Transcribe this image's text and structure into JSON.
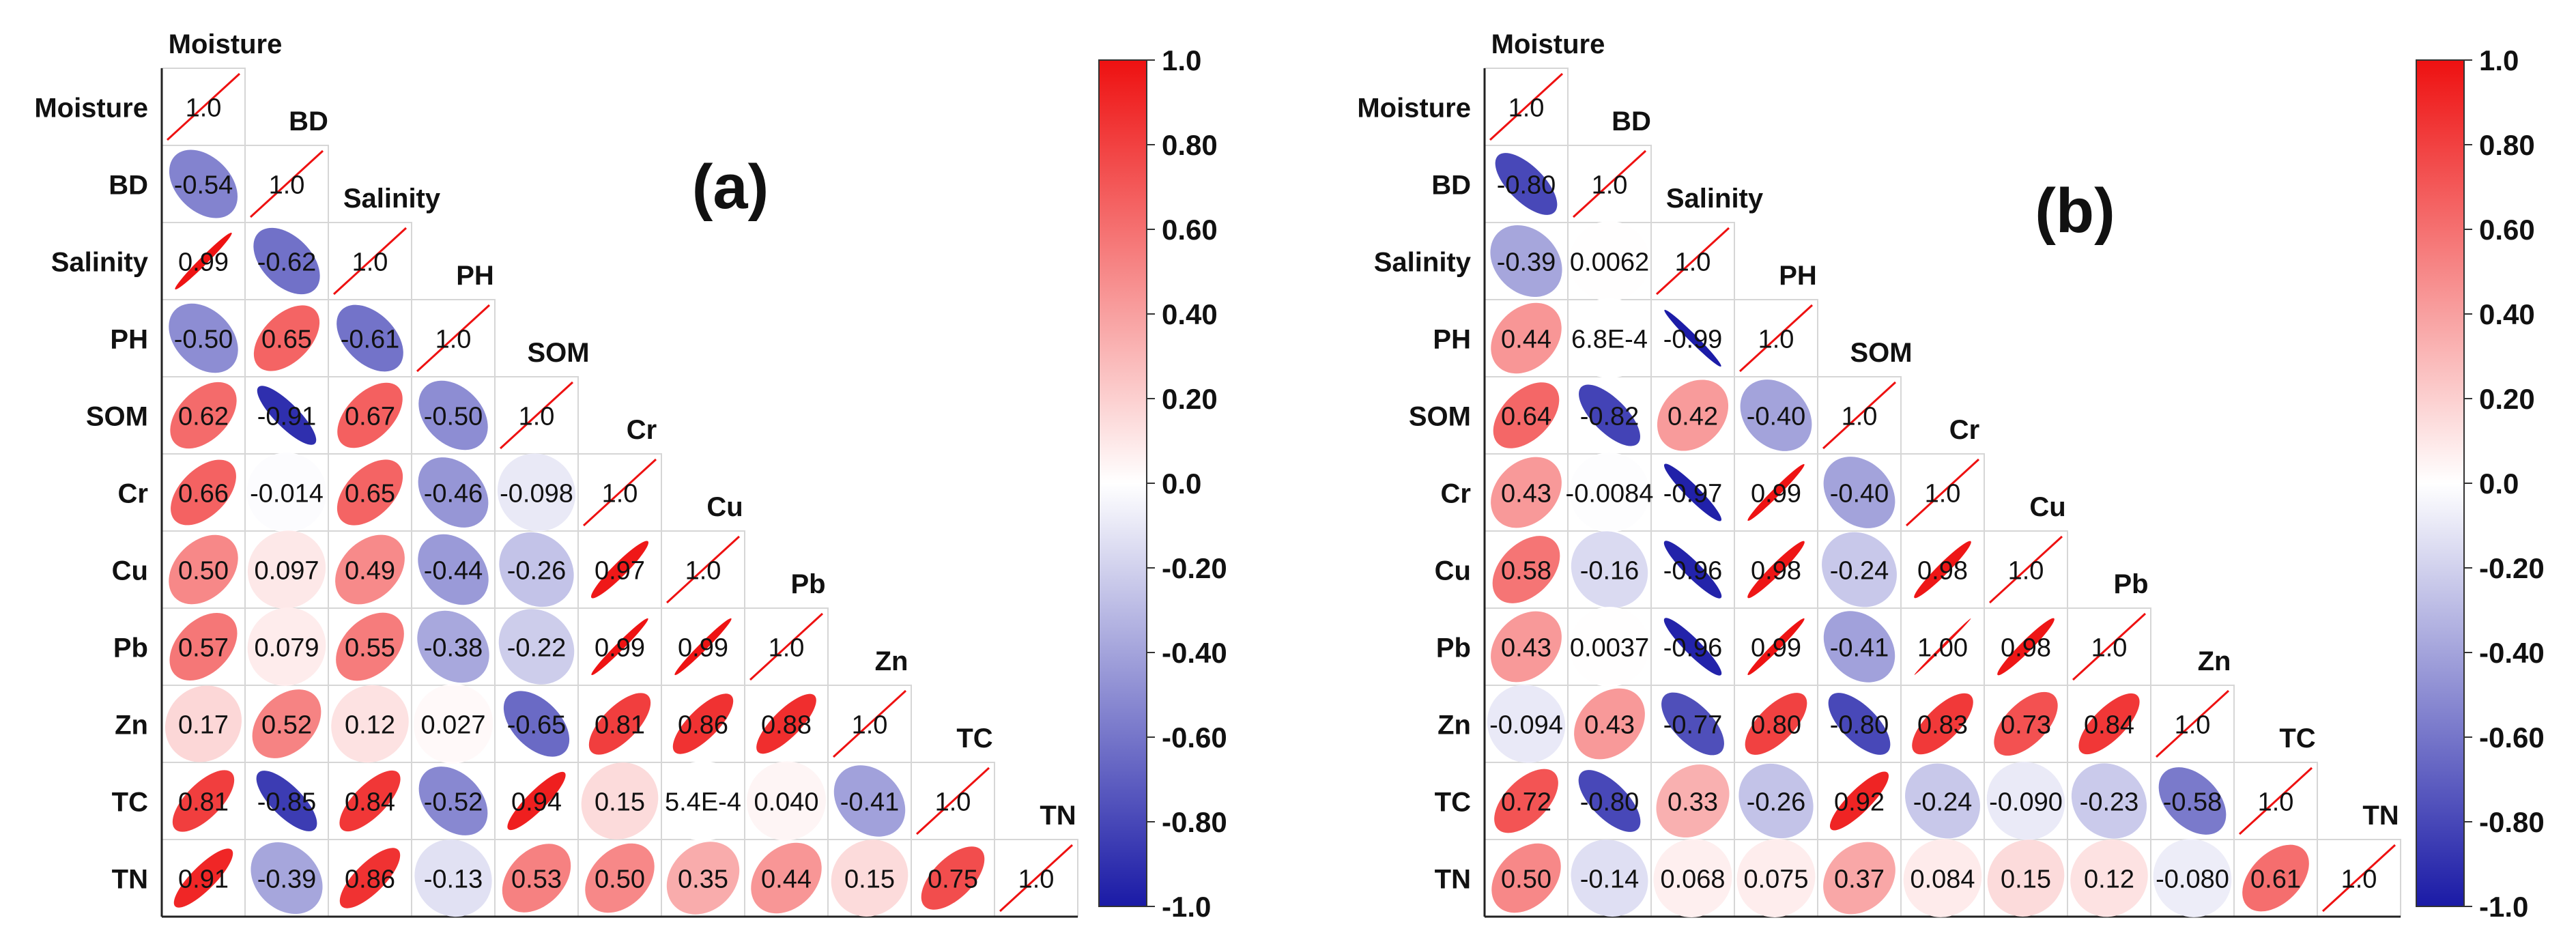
{
  "chart_data": [
    {
      "type": "heatmap",
      "panel_label": "(a)",
      "variables": [
        "Moisture",
        "BD",
        "Salinity",
        "PH",
        "SOM",
        "Cr",
        "Cu",
        "Pb",
        "Zn",
        "TC",
        "TN"
      ],
      "values": [
        [
          "1.0"
        ],
        [
          "-0.54",
          "1.0"
        ],
        [
          "0.99",
          "-0.62",
          "1.0"
        ],
        [
          "-0.50",
          "0.65",
          "-0.61",
          "1.0"
        ],
        [
          "0.62",
          "-0.91",
          "0.67",
          "-0.50",
          "1.0"
        ],
        [
          "0.66",
          "-0.014",
          "0.65",
          "-0.46",
          "-0.098",
          "1.0"
        ],
        [
          "0.50",
          "0.097",
          "0.49",
          "-0.44",
          "-0.26",
          "0.97",
          "1.0"
        ],
        [
          "0.57",
          "0.079",
          "0.55",
          "-0.38",
          "-0.22",
          "0.99",
          "0.99",
          "1.0"
        ],
        [
          "0.17",
          "0.52",
          "0.12",
          "0.027",
          "-0.65",
          "0.81",
          "0.86",
          "0.88",
          "1.0"
        ],
        [
          "0.81",
          "-0.85",
          "0.84",
          "-0.52",
          "0.94",
          "0.15",
          "5.4E-4",
          "0.040",
          "-0.41",
          "1.0"
        ],
        [
          "0.91",
          "-0.39",
          "0.86",
          "-0.13",
          "0.53",
          "0.50",
          "0.35",
          "0.44",
          "0.15",
          "0.75",
          "1.0"
        ]
      ],
      "colorbar": {
        "range": [
          -1.0,
          1.0
        ],
        "ticks": [
          "1.0",
          "0.80",
          "0.60",
          "0.40",
          "0.20",
          "0.0",
          "-0.20",
          "-0.40",
          "-0.60",
          "-0.80",
          "-1.0"
        ]
      },
      "colors": {
        "positive": "#ee1111",
        "neutral": "#ffffff",
        "negative": "#1a1aa6"
      }
    },
    {
      "type": "heatmap",
      "panel_label": "(b)",
      "variables": [
        "Moisture",
        "BD",
        "Salinity",
        "PH",
        "SOM",
        "Cr",
        "Cu",
        "Pb",
        "Zn",
        "TC",
        "TN"
      ],
      "values": [
        [
          "1.0"
        ],
        [
          "-0.80",
          "1.0"
        ],
        [
          "-0.39",
          "0.0062",
          "1.0"
        ],
        [
          "0.44",
          "6.8E-4",
          "-0.99",
          "1.0"
        ],
        [
          "0.64",
          "-0.82",
          "0.42",
          "-0.40",
          "1.0"
        ],
        [
          "0.43",
          "-0.0084",
          "-0.97",
          "0.99",
          "-0.40",
          "1.0"
        ],
        [
          "0.58",
          "-0.16",
          "-0.96",
          "0.98",
          "-0.24",
          "0.98",
          "1.0"
        ],
        [
          "0.43",
          "0.0037",
          "-0.96",
          "0.99",
          "-0.41",
          "1.00",
          "0.98",
          "1.0"
        ],
        [
          "-0.094",
          "0.43",
          "-0.77",
          "0.80",
          "-0.80",
          "0.83",
          "0.73",
          "0.84",
          "1.0"
        ],
        [
          "0.72",
          "-0.80",
          "0.33",
          "-0.26",
          "0.92",
          "-0.24",
          "-0.090",
          "-0.23",
          "-0.58",
          "1.0"
        ],
        [
          "0.50",
          "-0.14",
          "0.068",
          "0.075",
          "0.37",
          "0.084",
          "0.15",
          "0.12",
          "-0.080",
          "0.61",
          "1.0"
        ]
      ],
      "colorbar": {
        "range": [
          -1.0,
          1.0
        ],
        "ticks": [
          "1.0",
          "0.80",
          "0.60",
          "0.40",
          "0.20",
          "0.0",
          "-0.20",
          "-0.40",
          "-0.60",
          "-0.80",
          "-1.0"
        ]
      },
      "colors": {
        "positive": "#ee1111",
        "neutral": "#ffffff",
        "negative": "#1a1aa6"
      }
    }
  ]
}
